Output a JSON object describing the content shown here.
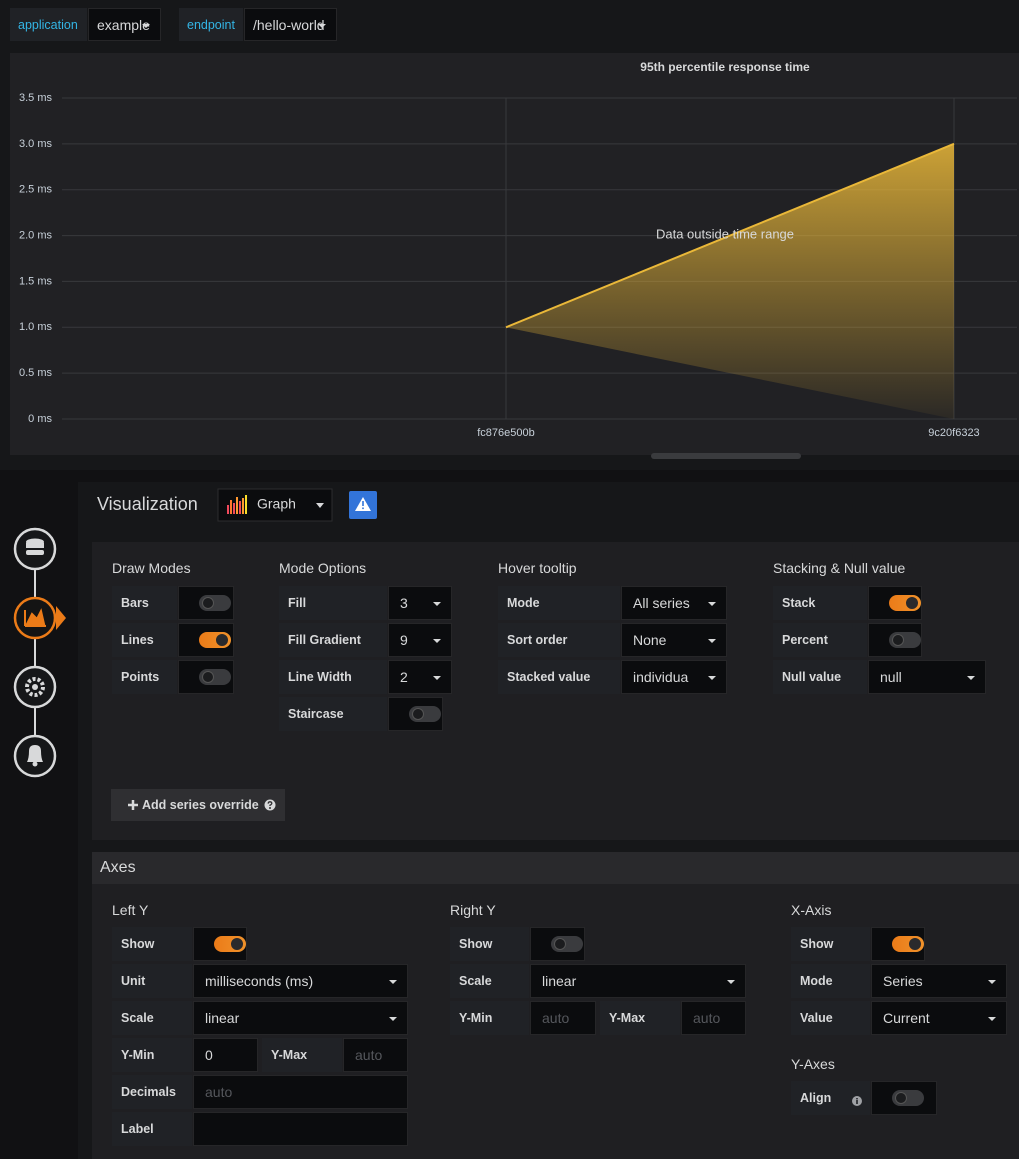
{
  "variables": [
    {
      "label": "application",
      "value": "example"
    },
    {
      "label": "endpoint",
      "value": "/hello-world"
    }
  ],
  "chart_data": {
    "type": "line",
    "title": "95th percentile response time",
    "annotation": "Data outside time range",
    "categories": [
      "fc876e500b",
      "9c20f6323"
    ],
    "values": [
      1,
      3
    ],
    "color": "#EAB839",
    "fill": true,
    "ylim": [
      0,
      3.5
    ],
    "yticks": [
      {
        "value": 0,
        "label": "0 ms"
      },
      {
        "value": 0.5,
        "label": "0.5 ms"
      },
      {
        "value": 1,
        "label": "1.0 ms"
      },
      {
        "value": 1.5,
        "label": "1.5 ms"
      },
      {
        "value": 2,
        "label": "2.0 ms"
      },
      {
        "value": 2.5,
        "label": "2.5 ms"
      },
      {
        "value": 3,
        "label": "3.0 ms"
      },
      {
        "value": 3.5,
        "label": "3.5 ms"
      }
    ],
    "grid": true
  },
  "editor": {
    "title": "Visualization",
    "visualization": "Graph",
    "options": [
      {
        "title": "Draw Modes",
        "rows": [
          {
            "label": "Bars",
            "on": false
          },
          {
            "label": "Lines",
            "on": true
          },
          {
            "label": "Points",
            "on": false
          }
        ]
      },
      {
        "title": "Mode Options",
        "rows": [
          {
            "label": "Fill",
            "value": 3
          },
          {
            "label": "Fill Gradient",
            "value": 9
          },
          {
            "label": "Line Width",
            "value": 2
          },
          {
            "label": "Staircase",
            "on": false
          }
        ]
      },
      {
        "title": "Hover tooltip",
        "rows": [
          {
            "label": "Mode",
            "value": "All series"
          },
          {
            "label": "Sort order",
            "value": "None"
          },
          {
            "label": "Stacked value",
            "value": "individua"
          }
        ]
      },
      {
        "title": "Stacking & Null value",
        "rows": [
          {
            "label": "Stack",
            "on": true
          },
          {
            "label": "Percent",
            "on": false
          },
          {
            "label": "Null value",
            "value": "null"
          }
        ]
      }
    ],
    "add_override": "Add series override",
    "axes": {
      "title": "Axes",
      "left": {
        "title": "Left Y",
        "rows": [
          {
            "label": "Show",
            "on": true
          },
          {
            "label": "Unit",
            "value": "milliseconds (ms)"
          },
          {
            "label": "Scale",
            "value": "linear"
          },
          {
            "label": "Y-Min",
            "value": 0
          },
          {
            "label": "Y-Max",
            "placeholder": "auto"
          },
          {
            "label": "Decimals",
            "placeholder": "auto"
          },
          {
            "label": "Label"
          }
        ]
      },
      "right": {
        "title": "Right Y",
        "rows": [
          {
            "label": "Show",
            "on": false
          },
          {
            "label": "Scale",
            "value": "linear"
          },
          {
            "label": "Y-Min",
            "placeholder": "auto"
          },
          {
            "label": "Y-Max",
            "placeholder": "auto"
          }
        ]
      },
      "x": {
        "title": "X-Axis",
        "rows": [
          {
            "label": "Show",
            "on": true
          },
          {
            "label": "Mode",
            "value": "Series"
          },
          {
            "label": "Value",
            "value": "Current"
          }
        ]
      },
      "y_axes": {
        "title": "Y-Axes",
        "rows": [
          {
            "label": "Align",
            "on": false
          }
        ]
      }
    }
  }
}
